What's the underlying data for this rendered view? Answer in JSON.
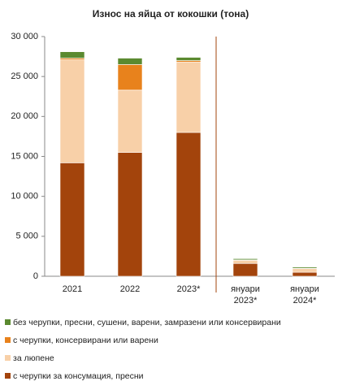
{
  "chart_data": {
    "type": "stacked_bar",
    "title": "Износ на яйца от кокошки (тона)",
    "categories": [
      "2021",
      "2022",
      "2023*",
      "януари 2023*",
      "януари 2024*"
    ],
    "series": [
      {
        "name": "с черупки за консумация, пресни",
        "color": "#a3440c",
        "values": [
          14200,
          15500,
          18000,
          1600,
          500
        ]
      },
      {
        "name": "за люпене",
        "color": "#f8d0a8",
        "values": [
          12900,
          7800,
          8800,
          400,
          450
        ]
      },
      {
        "name": "с черупки, консервирани или варени",
        "color": "#e8821c",
        "values": [
          200,
          3200,
          200,
          50,
          50
        ]
      },
      {
        "name": "без черупки, пресни, сушени, варени, замразени или консервирани",
        "color": "#5b8a30",
        "values": [
          800,
          800,
          400,
          150,
          150
        ]
      }
    ],
    "ylim": [
      0,
      30000
    ],
    "yticks": [
      {
        "value": 0,
        "label": "0"
      },
      {
        "value": 5000,
        "label": "5 000"
      },
      {
        "value": 10000,
        "label": "10 000"
      },
      {
        "value": 15000,
        "label": "15 000"
      },
      {
        "value": 20000,
        "label": "20 000"
      },
      {
        "value": 25000,
        "label": "25 000"
      },
      {
        "value": 30000,
        "label": "30 000"
      }
    ],
    "grid": false
  }
}
